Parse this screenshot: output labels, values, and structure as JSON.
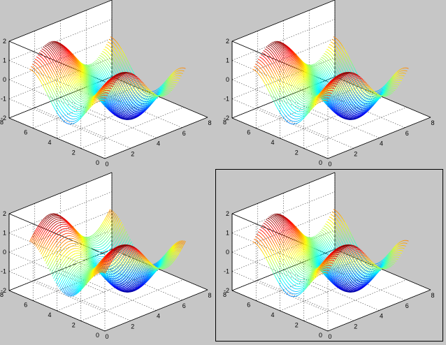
{
  "figure": {
    "background": "#c6c6c6",
    "grid": true,
    "box": true,
    "colormap": "jet",
    "selected_panel_border": "#000000"
  },
  "chart_data": [
    {
      "type": "surface",
      "panel": "top-left",
      "selected": false,
      "xlim": [
        0,
        8
      ],
      "ylim": [
        0,
        8
      ],
      "zlim": [
        -2,
        2
      ],
      "xticks": [
        "0",
        "2",
        "4",
        "6",
        "8"
      ],
      "yticks": [
        "0",
        "2",
        "4",
        "6",
        "8"
      ],
      "zticks": [
        "-2",
        "-1",
        "0",
        "1",
        "2"
      ],
      "surface": "z = sin(x) + cos(y)",
      "x_range": [
        0,
        6.283
      ],
      "y_range": [
        0,
        6.283
      ],
      "z_range": [
        -2,
        2
      ],
      "rendering": "mesh lines along y"
    },
    {
      "type": "surface",
      "panel": "top-right",
      "selected": false,
      "xlim": [
        0,
        8
      ],
      "ylim": [
        0,
        8
      ],
      "zlim": [
        -2,
        2
      ],
      "xticks": [
        "0",
        "2",
        "4",
        "6",
        "8"
      ],
      "yticks": [
        "0",
        "2",
        "4",
        "6",
        "8"
      ],
      "zticks": [
        "-2",
        "-1",
        "0",
        "1",
        "2"
      ],
      "surface": "z = sin(x) + cos(y)",
      "x_range": [
        0,
        6.283
      ],
      "y_range": [
        0,
        6.283
      ],
      "z_range": [
        -2,
        2
      ],
      "rendering": "mesh lines along y"
    },
    {
      "type": "surface",
      "panel": "bottom-left",
      "selected": false,
      "xlim": [
        0,
        8
      ],
      "ylim": [
        0,
        8
      ],
      "zlim": [
        -2,
        2
      ],
      "xticks": [
        "0",
        "2",
        "4",
        "6",
        "8"
      ],
      "yticks": [
        "0",
        "2",
        "4",
        "6",
        "8"
      ],
      "zticks": [
        "-2",
        "-1",
        "0",
        "1",
        "2"
      ],
      "surface": "z = sin(x) + cos(y)",
      "x_range": [
        0,
        6.283
      ],
      "y_range": [
        0,
        6.283
      ],
      "z_range": [
        -2,
        2
      ],
      "rendering": "mesh lines along x"
    },
    {
      "type": "surface",
      "panel": "bottom-right",
      "selected": true,
      "xlim": [
        0,
        8
      ],
      "ylim": [
        0,
        8
      ],
      "zlim": [
        -2,
        2
      ],
      "xticks": [
        "0",
        "2",
        "4",
        "6",
        "8"
      ],
      "yticks": [
        "0",
        "2",
        "4",
        "6",
        "8"
      ],
      "zticks": [
        "-2",
        "-1",
        "0",
        "1",
        "2"
      ],
      "surface": "z = sin(x) + cos(y)",
      "x_range": [
        0,
        6.283
      ],
      "y_range": [
        0,
        6.283
      ],
      "z_range": [
        -2,
        2
      ],
      "rendering": "mesh lines along y"
    }
  ]
}
